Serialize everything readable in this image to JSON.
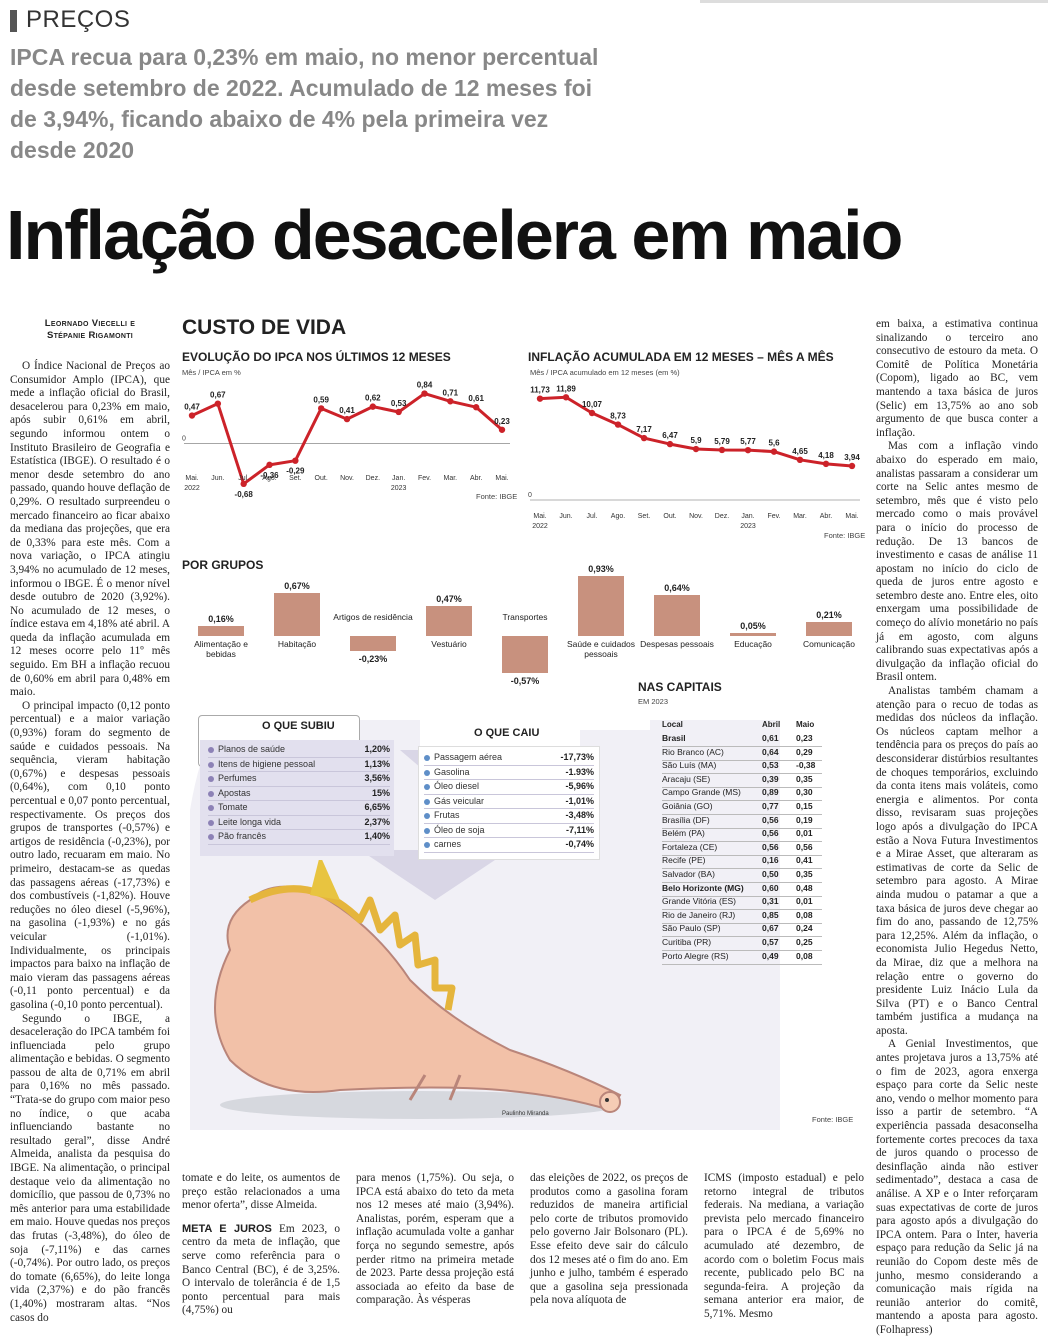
{
  "section": "PREÇOS",
  "subtitle": "IPCA recua para 0,23% em maio, no menor percentual desde setembro de 2022. Acumulado de 12 meses foi de 3,94%, ficando abaixo de 4% pela primeira vez desde 2020",
  "headline": "Inflação desacelera em maio",
  "byline": {
    "l1": "Leornado Viecelli e",
    "l2": "Stépanie Rigamonti"
  },
  "col1": [
    "O Índice Nacional de Preços ao Consumidor Amplo (IPCA), que mede a inflação oficial do Brasil, desacelerou para 0,23% em maio, após subir 0,61% em abril, segundo informou ontem o Instituto Brasileiro de Geografia e Estatística (IBGE). O resultado é o menor desde setembro do ano passado, quando houve deflação de 0,29%. O resultado surpreendeu o mercado financeiro ao ficar abaixo da mediana das projeções, que era de 0,33% para este mês. Com a nova variação, o IPCA atingiu 3,94% no acumulado de 12 meses, informou o IBGE. É o menor nível desde outubro de 2020 (3,92%). No acumulado de 12 meses, o índice estava em 4,18% até abril. A queda da inflação acumulada em 12 meses ocorre pelo 11º mês seguido. Em BH a inflação recuou de 0,60% em abril para 0,48% em maio.",
    "O principal impacto (0,12 ponto percentual) e a maior variação (0,93%) foram do segmento de saúde e cuidados pessoais. Na sequência, vieram habitação (0,67%) e despesas pessoais (0,64%), com 0,10 ponto percentual e 0,07 ponto percentual, respectivamente. Os preços dos grupos de transportes (-0,57%) e artigos de residência (-0,23%), por outro lado, recuaram em maio. No primeiro, destacam-se as quedas das passagens aéreas (-17,73%) e dos combustíveis (-1,82%). Houve reduções no óleo diesel (-5,96%), na gasolina (-1,93%) e no gás veicular (-1,01%). Individualmente, os principais impactos para baixo na inflação de maio vieram das passagens aéreas (-0,11 ponto percentual) e da gasolina (-0,10 ponto percentual).",
    "Segundo o IBGE, a desaceleração do IPCA também foi influenciada pelo grupo alimentação e bebidas. O segmento passou de alta de 0,71% em abril para 0,16% no mês passado. “Trata-se do grupo com maior peso no índice, o que acaba influenciando bastante no resultado geral”, disse André Almeida, analista da pesquisa do IBGE. Na alimentação, o principal destaque veio da alimentação no domicílio, que passou de 0,73% no mês anterior para uma estabilidade em maio. Houve quedas nos preços das frutas (-3,48%), do óleo de soja (-7,11%) e das carnes (-0,74%). Por outro lado, os preços do tomate (6,65%), do leite longa vida (2,37%) e do pão francês (1,40%) mostraram altas. “Nos casos do"
  ],
  "bottom": {
    "c1": "tomate e do leite, os aumentos de preço estão relacionados a uma menor oferta”, disse Almeida.",
    "meta_head": "META E JUROS",
    "c1b": "Em 2023, o centro da meta de inflação, que serve como referência para o Banco Central (BC), é de 3,25%. O intervalo de tolerância é de 1,5 ponto percentual para mais (4,75%) ou",
    "c2": "para menos (1,75%). Ou seja, o IPCA está abaixo do teto da meta nos 12 meses até maio (3,94%). Analistas, porém, esperam que a inflação acumulada volte a ganhar força no segundo semestre, após perder ritmo na primeira metade de 2023. Parte dessa projeção está associada ao efeito da base de comparação. Às vésperas",
    "c3": "das eleições de 2022, os preços de produtos como a gasolina foram reduzidos de maneira artificial pelo corte de tributos promovido pelo governo Jair Bolsonaro (PL). Esse efeito deve sair do cálculo dos 12 meses até o fim do ano. Em junho e julho, também é esperado que a gasolina seja pressionada pela nova alíquota de",
    "c4": "ICMS (imposto estadual) e pelo retorno integral de tributos federais. Na mediana, a variação prevista pelo mercado financeiro para o IPCA é de 5,69% no acumulado até dezembro, de acordo com o boletim Focus mais recente, publicado pelo BC na segunda-feira. A projeção da semana anterior era maior, de 5,71%. Mesmo"
  },
  "right_col": [
    "em baixa, a estimativa continua sinalizando o terceiro ano consecutivo de estouro da meta. O Comitê de Política Monetária (Copom), ligado ao BC, vem mantendo a taxa básica de juros (Selic) em 13,75% ao ano sob argumento de que busca conter a inflação.",
    "Mas com a inflação vindo abaixo do esperado em maio, analistas passaram a considerar um corte na Selic antes mesmo de setembro, mês que é visto pelo mercado como o mais provável para o início do processo de redução. De 13 bancos de investimento e casas de análise 11 apostam no início do ciclo de queda de juros entre agosto e setembro deste ano. Entre eles, oito enxergam uma possibilidade de começo do alívio monetário no país já em agosto, com alguns calibrando suas expectativas após a divulgação da inflação oficial do Brasil ontem.",
    "Analistas também chamam a atenção para o recuo de todas as medidas dos núcleos da inflação. Os núcleos captam melhor a tendência para os preços do país ao desconsiderar distúrbios resultantes de choques temporários, excluindo da conta itens mais voláteis, como energia e alimentos. Por conta disso, revisaram suas projeções logo após a divulgação do IPCA estão a Nova Futura Investimentos e a Mirae Asset, que alteraram as estimativas de corte da Selic de setembro para agosto. A Mirae ainda mudou o patamar a que a taxa básica de juros deve chegar ao fim do ano, passando de 12,75% para 12,25%. Além da inflação, o economista Julio Hegedus Netto, da Mirae, diz que a melhora na relação entre o governo do presidente Luiz Inácio Lula da Silva (PT) e o Banco Central também justifica a mudança na aposta.",
    "A Genial Investimentos, que antes projetava juros a 13,75% até o fim de 2023, agora enxerga espaço para corte da Selic neste ano, vendo o melhor momento para isso a partir de setembro. “A experiência passada desaconselha fortemente cortes precoces da taxa de juros quando o processo de desinflação ainda não estiver sedimentado”, destaca a casa de análise. A XP e o Inter reforçaram suas expectativas de corte de juros para agosto após a divulgação do IPCA ontem. Para o Inter, haveria espaço para redução da Selic já na reunião do Copom deste mês de junho, mesmo considerando a comunicação mais rígida na reunião anterior do comitê, mantendo a aposta para agosto. (Folhapress)"
  ],
  "infographic": {
    "title": "CUSTO DE VIDA",
    "source": "Fonte: IBGE",
    "artist": "Paulinho Miranda",
    "accent": "#cc2229",
    "bar_color": "#c8917e"
  },
  "chart_data": [
    {
      "type": "line",
      "title": "EVOLUÇÃO DO IPCA NOS ÚLTIMOS 12 MESES",
      "ylabel": "Mês / IPCA em %",
      "categories": [
        "Mai.",
        "Jun.",
        "Jul.",
        "Ago.",
        "Set.",
        "Out.",
        "Nov.",
        "Dez.",
        "Jan.",
        "Fev.",
        "Mar.",
        "Abr.",
        "Mai."
      ],
      "year_labels": [
        "2022",
        "2023"
      ],
      "values": [
        0.47,
        0.67,
        -0.68,
        -0.36,
        -0.29,
        0.59,
        0.41,
        0.62,
        0.53,
        0.84,
        0.71,
        0.61,
        0.23
      ],
      "labels": [
        "0,47",
        "0,67",
        "-0,68",
        "-0,36",
        "-0,29",
        "0,59",
        "0,41",
        "0,62",
        "0,53",
        "0,84",
        "0,71",
        "0,61",
        "0,23"
      ],
      "zero_label": "0",
      "source": "Fonte: IBGE"
    },
    {
      "type": "line",
      "title": "INFLAÇÃO ACUMULADA EM 12 MESES – MÊS A MÊS",
      "ylabel": "Mês / IPCA acumulado em 12 meses (em %)",
      "categories": [
        "Mai.",
        "Jun.",
        "Jul.",
        "Ago.",
        "Set.",
        "Out.",
        "Nov.",
        "Dez.",
        "Jan.",
        "Fev.",
        "Mar.",
        "Abr.",
        "Mai."
      ],
      "year_labels": [
        "2022",
        "2023"
      ],
      "values": [
        11.73,
        11.89,
        10.07,
        8.73,
        7.17,
        6.47,
        5.9,
        5.79,
        5.77,
        5.6,
        4.65,
        4.18,
        3.94
      ],
      "labels": [
        "11,73",
        "11,89",
        "10,07",
        "8,73",
        "7,17",
        "6,47",
        "5,9",
        "5,79",
        "5,77",
        "5,6",
        "4,65",
        "4,18",
        "3,94"
      ],
      "zero_label": "0",
      "source": "Fonte: IBGE"
    },
    {
      "type": "bar",
      "title": "POR GRUPOS",
      "categories": [
        "Alimentação e bebidas",
        "Habitação",
        "Artigos de residência",
        "Vestuário",
        "Transportes",
        "Saúde e cuidados pessoais",
        "Despesas pessoais",
        "Educação",
        "Comunicação"
      ],
      "values": [
        0.16,
        0.67,
        -0.23,
        0.47,
        -0.57,
        0.93,
        0.64,
        0.05,
        0.21
      ],
      "labels": [
        "0,16%",
        "0,67%",
        "-0,23%",
        "0,47%",
        "-0,57%",
        "0,93%",
        "0,64%",
        "0,05%",
        "0,21%"
      ]
    }
  ],
  "subiu": {
    "title": "O QUE SUBIU",
    "items": [
      {
        "name": "Planos de saúde",
        "value": "1,20%"
      },
      {
        "name": "Itens de higiene pessoal",
        "value": "1,13%"
      },
      {
        "name": "Perfumes",
        "value": "3,56%"
      },
      {
        "name": "Apostas",
        "value": "15%"
      },
      {
        "name": "Tomate",
        "value": "6,65%"
      },
      {
        "name": "Leite longa vida",
        "value": "2,37%"
      },
      {
        "name": "Pão francês",
        "value": "1,40%"
      }
    ]
  },
  "caiu": {
    "title": "O QUE CAIU",
    "items": [
      {
        "name": "Passagem aérea",
        "value": "-17,73%"
      },
      {
        "name": "Gasolina",
        "value": "-1.93%"
      },
      {
        "name": "Óleo diesel",
        "value": "-5,96%"
      },
      {
        "name": "Gás veicular",
        "value": "-1,01%"
      },
      {
        "name": "Frutas",
        "value": "-3,48%"
      },
      {
        "name": "Óleo de soja",
        "value": "-7,11%"
      },
      {
        "name": "carnes",
        "value": "-0,74%"
      }
    ]
  },
  "capitais": {
    "title": "NAS CAPITAIS",
    "subtitle": "EM 2023",
    "headers": [
      "Local",
      "Abril",
      "Maio"
    ],
    "rows": [
      [
        "Brasil",
        "0,61",
        "0,23"
      ],
      [
        "Rio Branco (AC)",
        "0,64",
        "0,29"
      ],
      [
        "São Luís (MA)",
        "0,53",
        "-0,38"
      ],
      [
        "Aracaju (SE)",
        "0,39",
        "0,35"
      ],
      [
        "Campo Grande (MS)",
        "0,89",
        "0,30"
      ],
      [
        "Goiânia (GO)",
        "0,77",
        "0,15"
      ],
      [
        "Brasília (DF)",
        "0,56",
        "0,19"
      ],
      [
        "Belém (PA)",
        "0,56",
        "0,01"
      ],
      [
        "Fortaleza (CE)",
        "0,56",
        "0,56"
      ],
      [
        "Recife (PE)",
        "0,16",
        "0,41"
      ],
      [
        "Salvador (BA)",
        "0,50",
        "0,35"
      ],
      [
        "Belo Horizonte (MG)",
        "0,60",
        "0,48"
      ],
      [
        "Grande Vitória (ES)",
        "0,31",
        "0,01"
      ],
      [
        "Rio de Janeiro (RJ)",
        "0,85",
        "0,08"
      ],
      [
        "São Paulo (SP)",
        "0,67",
        "0,24"
      ],
      [
        "Curitiba (PR)",
        "0,57",
        "0,25"
      ],
      [
        "Porto Alegre (RS)",
        "0,49",
        "0,08"
      ]
    ]
  }
}
